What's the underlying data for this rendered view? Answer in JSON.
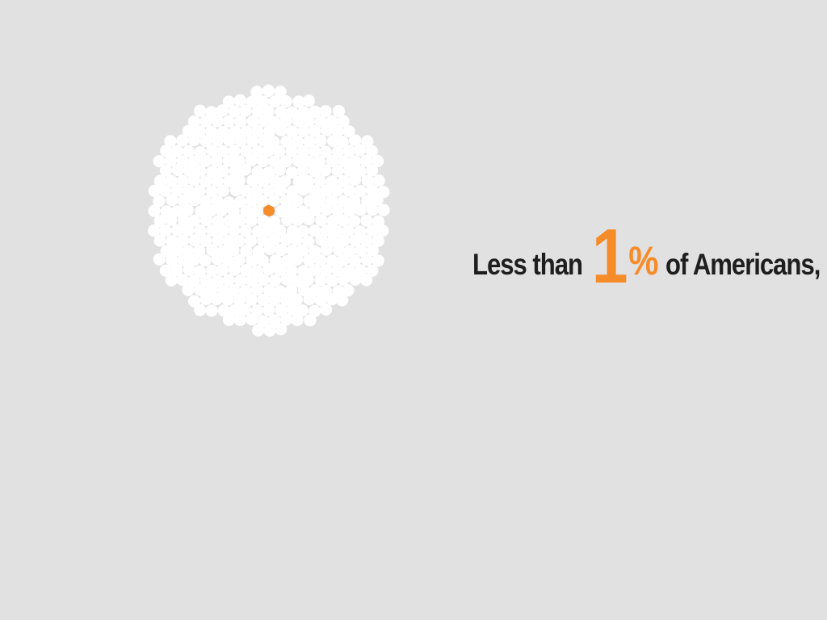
{
  "headline": {
    "prefix": "Less than",
    "number": "1",
    "percent": "%",
    "suffix": "of Americans,"
  },
  "dot_cluster": {
    "dot_count": 400,
    "highlighted_count": 1,
    "dot_color": "#ffffff",
    "highlight_color": "#f68b2a"
  },
  "colors": {
    "background": "#e1e1e1",
    "text": "#1e1e1e",
    "accent": "#f68b2a"
  }
}
